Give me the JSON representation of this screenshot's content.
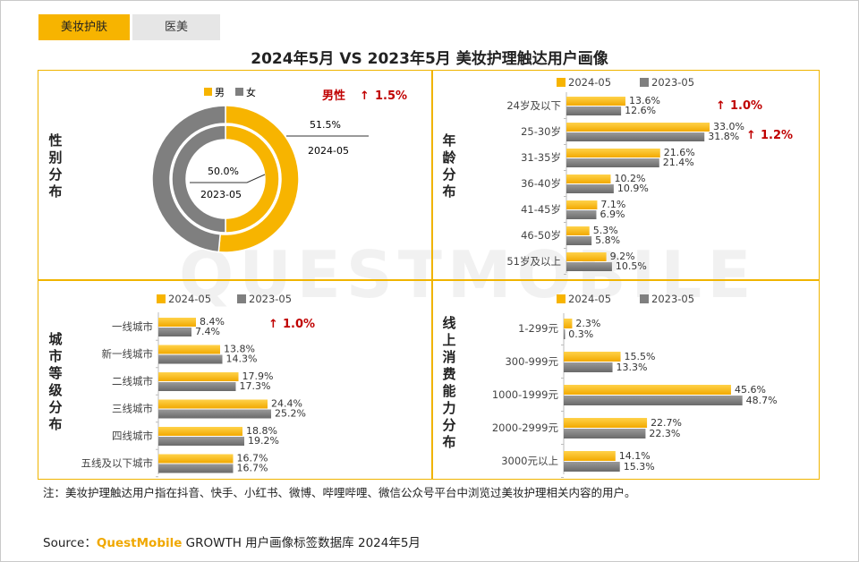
{
  "tabs": [
    {
      "label": "美妆护肤"
    },
    {
      "label": "医美"
    }
  ],
  "title": "2024年5月 VS 2023年5月 美妆护理触达用户画像",
  "watermark": "QUESTMOBILE",
  "colors": {
    "y2024": "#f7b400",
    "y2023": "#7f7f7f",
    "accent": "#c00000",
    "border": "#f0b400"
  },
  "chart_data": [
    {
      "type": "pie",
      "name": "性别分布",
      "legend": [
        "男",
        "女"
      ],
      "series": [
        {
          "period": "2024-05",
          "values": [
            51.5,
            48.5
          ],
          "label": "51.5%"
        },
        {
          "period": "2023-05",
          "values": [
            50.0,
            50.0
          ],
          "label": "50.0%"
        }
      ],
      "annotation": {
        "text": "男性",
        "delta": "1.5%"
      }
    },
    {
      "type": "bar",
      "name": "年龄分布",
      "legend": [
        "2024-05",
        "2023-05"
      ],
      "categories": [
        "24岁及以下",
        "25-30岁",
        "31-35岁",
        "36-40岁",
        "41-45岁",
        "46-50岁",
        "51岁及以上"
      ],
      "series": [
        {
          "name": "2024-05",
          "values": [
            13.6,
            33.0,
            21.6,
            10.2,
            7.1,
            5.3,
            9.2
          ]
        },
        {
          "name": "2023-05",
          "values": [
            12.6,
            31.8,
            21.4,
            10.9,
            6.9,
            5.8,
            10.5
          ]
        }
      ],
      "annotations": [
        {
          "category": "24岁及以下",
          "delta": "1.0%"
        },
        {
          "category": "25-30岁",
          "delta": "1.2%"
        }
      ]
    },
    {
      "type": "bar",
      "name": "城市等级分布",
      "legend": [
        "2024-05",
        "2023-05"
      ],
      "categories": [
        "一线城市",
        "新一线城市",
        "二线城市",
        "三线城市",
        "四线城市",
        "五线及以下城市"
      ],
      "series": [
        {
          "name": "2024-05",
          "values": [
            8.4,
            13.8,
            17.9,
            24.4,
            18.8,
            16.7
          ]
        },
        {
          "name": "2023-05",
          "values": [
            7.4,
            14.3,
            17.3,
            25.2,
            19.2,
            16.7
          ]
        }
      ],
      "annotations": [
        {
          "category": "一线城市",
          "delta": "1.0%"
        }
      ]
    },
    {
      "type": "bar",
      "name": "线上消费能力分布",
      "legend": [
        "2024-05",
        "2023-05"
      ],
      "categories": [
        "1-299元",
        "300-999元",
        "1000-1999元",
        "2000-2999元",
        "3000元以上"
      ],
      "series": [
        {
          "name": "2024-05",
          "values": [
            2.3,
            15.5,
            45.6,
            22.7,
            14.1
          ]
        },
        {
          "name": "2023-05",
          "values": [
            0.3,
            13.3,
            48.7,
            22.3,
            15.3
          ]
        }
      ],
      "annotations": []
    }
  ],
  "note": "注：美妆护理触达用户指在抖音、快手、小红书、微博、哔哩哔哩、微信公众号平台中浏览过美妆护理相关内容的用户。",
  "source": {
    "prefix": "Source：",
    "brand": "QuestMobile",
    "text": " GROWTH 用户画像标签数据库 2024年5月"
  }
}
